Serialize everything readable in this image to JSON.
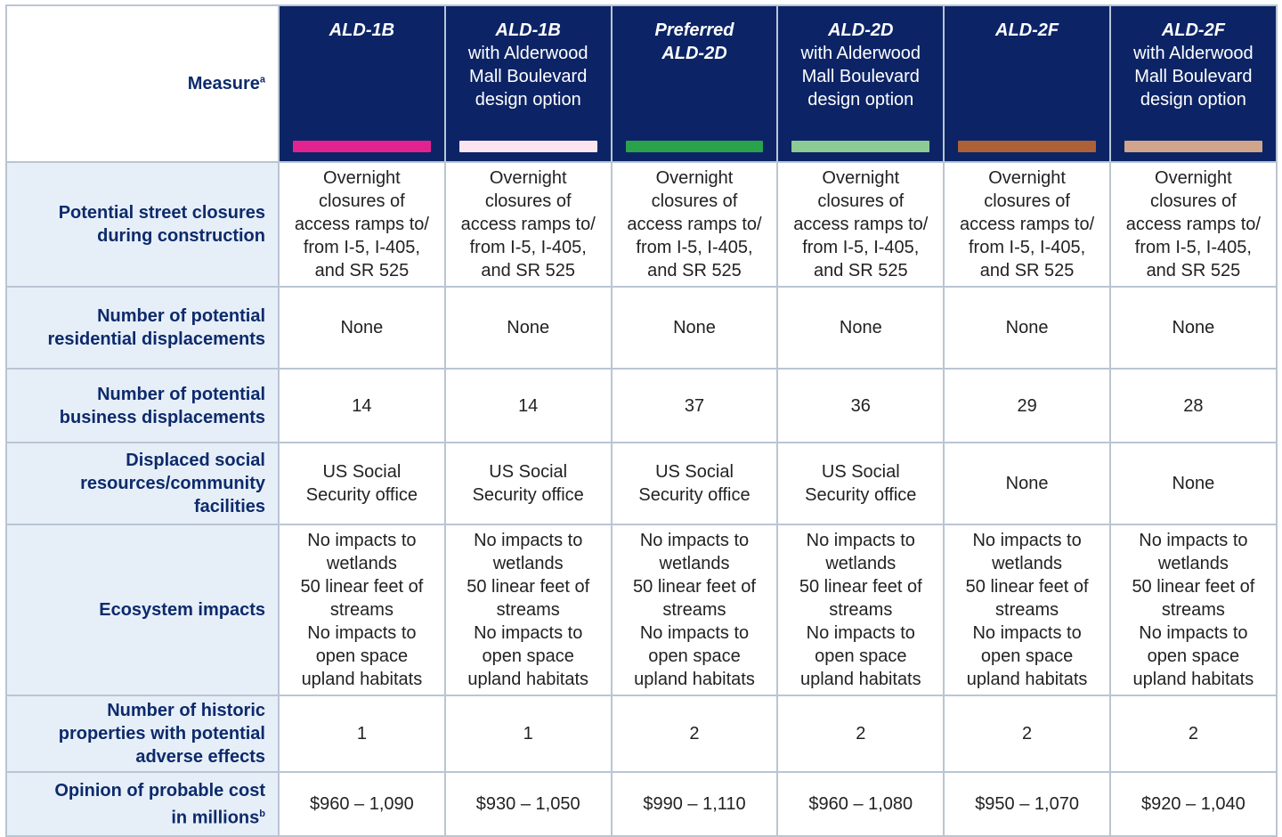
{
  "header": {
    "measure_label": "Measure",
    "measure_sup": "a",
    "alternatives": [
      {
        "name": "ALD-1B",
        "sub": [],
        "color": "#e4228f"
      },
      {
        "name": "ALD-1B",
        "sub": [
          "with Alderwood",
          "Mall Boulevard",
          "design option"
        ],
        "color": "#fbe4f0"
      },
      {
        "name": "Preferred",
        "name2": "ALD-2D",
        "sub": [],
        "color": "#2aa24b"
      },
      {
        "name": "ALD-2D",
        "sub": [
          "with Alderwood",
          "Mall Boulevard",
          "design option"
        ],
        "color": "#8dcb95"
      },
      {
        "name": "ALD-2F",
        "sub": [],
        "color": "#ad6137"
      },
      {
        "name": "ALD-2F",
        "sub": [
          "with Alderwood",
          "Mall Boulevard",
          "design option"
        ],
        "color": "#d1a58b"
      }
    ]
  },
  "rows": [
    {
      "label": [
        "Potential street closures",
        "during construction"
      ],
      "values": [
        [
          "Overnight",
          "closures of",
          "access ramps to/",
          "from I-5, I-405,",
          "and SR 525"
        ],
        [
          "Overnight",
          "closures of",
          "access ramps to/",
          "from I-5, I-405,",
          "and SR 525"
        ],
        [
          "Overnight",
          "closures of",
          "access ramps to/",
          "from I-5, I-405,",
          "and SR 525"
        ],
        [
          "Overnight",
          "closures of",
          "access ramps to/",
          "from I-5, I-405,",
          "and SR 525"
        ],
        [
          "Overnight",
          "closures of",
          "access ramps to/",
          "from I-5, I-405,",
          "and SR 525"
        ],
        [
          "Overnight",
          "closures of",
          "access ramps to/",
          "from I-5, I-405,",
          "and SR 525"
        ]
      ]
    },
    {
      "label": [
        "Number of potential",
        "residential displacements"
      ],
      "values": [
        [
          "None"
        ],
        [
          "None"
        ],
        [
          "None"
        ],
        [
          "None"
        ],
        [
          "None"
        ],
        [
          "None"
        ]
      ]
    },
    {
      "label": [
        "Number of potential",
        "business displacements"
      ],
      "values": [
        [
          "14"
        ],
        [
          "14"
        ],
        [
          "37"
        ],
        [
          "36"
        ],
        [
          "29"
        ],
        [
          "28"
        ]
      ]
    },
    {
      "label": [
        "Displaced social",
        "resources/community",
        "facilities"
      ],
      "values": [
        [
          "US Social",
          "Security office"
        ],
        [
          "US Social",
          "Security office"
        ],
        [
          "US Social",
          "Security office"
        ],
        [
          "US Social",
          "Security office"
        ],
        [
          "None"
        ],
        [
          "None"
        ]
      ]
    },
    {
      "label": [
        "Ecosystem impacts"
      ],
      "values": [
        [
          "No impacts to",
          "wetlands",
          "50 linear feet of",
          "streams",
          "No impacts to",
          "open space",
          "upland habitats"
        ],
        [
          "No impacts to",
          "wetlands",
          "50 linear feet of",
          "streams",
          "No impacts to",
          "open space",
          "upland habitats"
        ],
        [
          "No impacts to",
          "wetlands",
          "50 linear feet of",
          "streams",
          "No impacts to",
          "open space",
          "upland habitats"
        ],
        [
          "No impacts to",
          "wetlands",
          "50 linear feet of",
          "streams",
          "No impacts to",
          "open space",
          "upland habitats"
        ],
        [
          "No impacts to",
          "wetlands",
          "50 linear feet of",
          "streams",
          "No impacts to",
          "open space",
          "upland habitats"
        ],
        [
          "No impacts to",
          "wetlands",
          "50 linear feet of",
          "streams",
          "No impacts to",
          "open space",
          "upland habitats"
        ]
      ]
    },
    {
      "label": [
        "Number of historic",
        "properties with potential",
        "adverse effects"
      ],
      "values": [
        [
          "1"
        ],
        [
          "1"
        ],
        [
          "2"
        ],
        [
          "2"
        ],
        [
          "2"
        ],
        [
          "2"
        ]
      ]
    },
    {
      "label": [
        "Opinion of probable cost",
        "in millions"
      ],
      "label_sup": "b",
      "values": [
        [
          "$960 – 1,090"
        ],
        [
          "$930 – 1,050"
        ],
        [
          "$990 – 1,110"
        ],
        [
          "$960 – 1,080"
        ],
        [
          "$950 – 1,070"
        ],
        [
          "$920 – 1,040"
        ]
      ]
    }
  ]
}
